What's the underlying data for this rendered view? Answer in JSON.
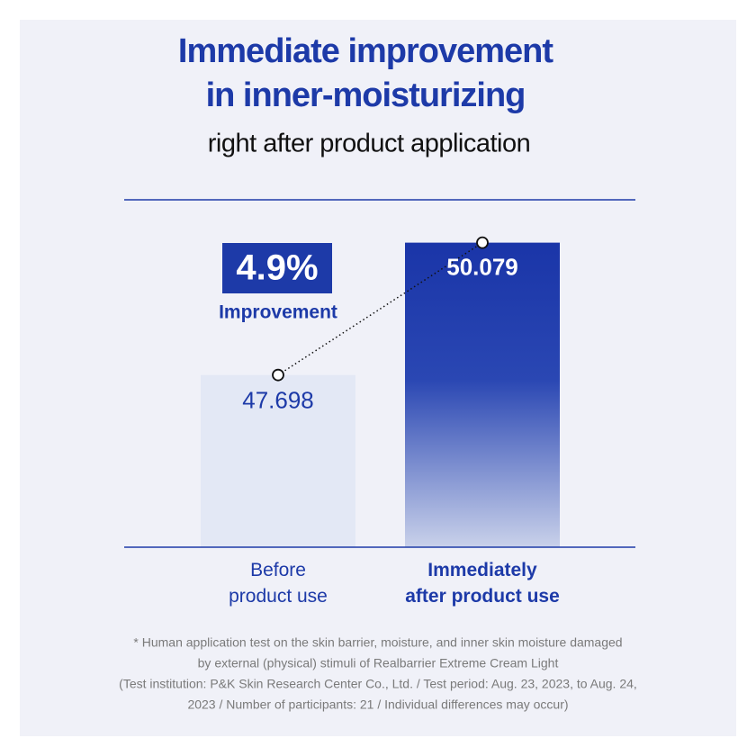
{
  "chart_data": {
    "type": "bar",
    "title": [
      "Immediate improvement",
      "in inner-moisturizing"
    ],
    "subtitle": "right after product application",
    "categories": [
      "Before\nproduct use",
      "Immediately\nafter product use"
    ],
    "values": [
      47.698,
      50.079
    ],
    "colors": [
      "#e3e8f5",
      "#1a35a8"
    ],
    "ylim": [
      44.6,
      50.85
    ],
    "annotation": {
      "value": "4.9%",
      "label": "Improvement"
    },
    "footnote": [
      "* Human application test on the skin barrier, moisture, and inner skin moisture damaged",
      "by external (physical) stimuli of Realbarrier Extreme Cream Light",
      "(Test institution: P&K Skin Research Center Co., Ltd. / Test period: Aug. 23, 2023, to Aug. 24,",
      "2023 / Number of participants: 21 / Individual differences may occur)"
    ]
  }
}
